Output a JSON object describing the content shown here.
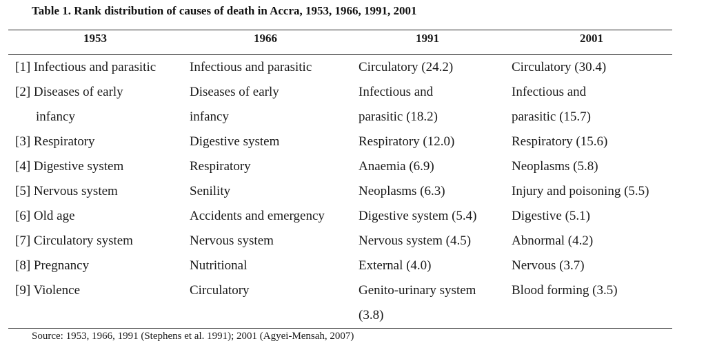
{
  "title": "Table 1. Rank distribution of causes of death in Accra, 1953, 1966, 1991, 2001",
  "columns": [
    "1953",
    "1966",
    "1991",
    "2001"
  ],
  "rows": [
    {
      "lines": [
        [
          "[1] Infectious and parasitic",
          "Infectious and parasitic",
          "Circulatory (24.2)",
          "Circulatory (30.4)"
        ]
      ]
    },
    {
      "lines": [
        [
          "[2] Diseases of early",
          "Diseases of early",
          "Infectious and",
          "Infectious and"
        ],
        [
          "infancy",
          "infancy",
          "parasitic (18.2)",
          "parasitic (15.7)"
        ]
      ]
    },
    {
      "lines": [
        [
          "[3] Respiratory",
          "Digestive system",
          "Respiratory (12.0)",
          "Respiratory (15.6)"
        ]
      ]
    },
    {
      "lines": [
        [
          "[4] Digestive system",
          "Respiratory",
          "Anaemia (6.9)",
          "Neoplasms (5.8)"
        ]
      ]
    },
    {
      "lines": [
        [
          "[5] Nervous system",
          "Senility",
          "Neoplasms (6.3)",
          "Injury and poisoning (5.5)"
        ]
      ]
    },
    {
      "lines": [
        [
          "[6] Old age",
          "Accidents and emergency",
          "Digestive system (5.4)",
          "Digestive (5.1)"
        ]
      ]
    },
    {
      "lines": [
        [
          "[7] Circulatory system",
          "Nervous system",
          "Nervous system (4.5)",
          "Abnormal (4.2)"
        ]
      ]
    },
    {
      "lines": [
        [
          "[8] Pregnancy",
          "Nutritional",
          "External (4.0)",
          "Nervous (3.7)"
        ]
      ]
    },
    {
      "lines": [
        [
          "[9] Violence",
          "Circulatory",
          "Genito-urinary system",
          "Blood forming (3.5)"
        ],
        [
          "",
          "",
          "(3.8)",
          ""
        ]
      ]
    }
  ],
  "source": "Source: 1953, 1966, 1991 (Stephens et al. 1991); 2001 (Agyei-Mensah, 2007)"
}
